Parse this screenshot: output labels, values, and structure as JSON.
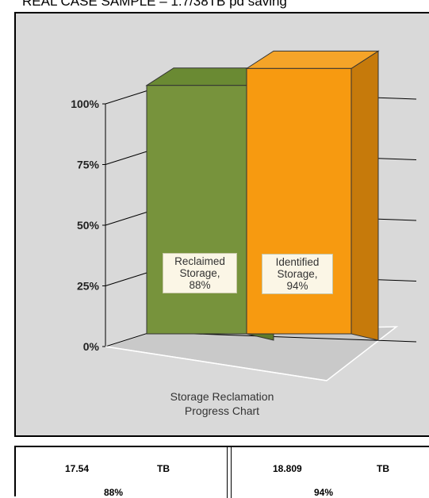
{
  "header": {
    "banner": "REAL CASE SAMPLE – 1.7/38TB pd saving"
  },
  "chart_data": {
    "type": "bar",
    "style": "3d",
    "categories": [
      "Reclaimed Storage",
      "Identified Storage"
    ],
    "values": [
      88,
      94
    ],
    "colors": [
      "#77933c",
      "#f79a10"
    ],
    "ylim": [
      0,
      100
    ],
    "ytick_labels": [
      "0%",
      "25%",
      "50%",
      "75%",
      "100%"
    ],
    "data_labels": [
      [
        "Reclaimed",
        "Storage,",
        "88%"
      ],
      [
        "Identified",
        "Storage,",
        "94%"
      ]
    ],
    "caption": [
      "Storage Reclamation",
      "Progress Chart"
    ],
    "grid": true,
    "background": "#d9d9d9"
  },
  "table": {
    "left": {
      "value": "17.54",
      "unit": "TB",
      "percent": "88%"
    },
    "right": {
      "value": "18.809",
      "unit": "TB",
      "percent": "94%"
    }
  }
}
